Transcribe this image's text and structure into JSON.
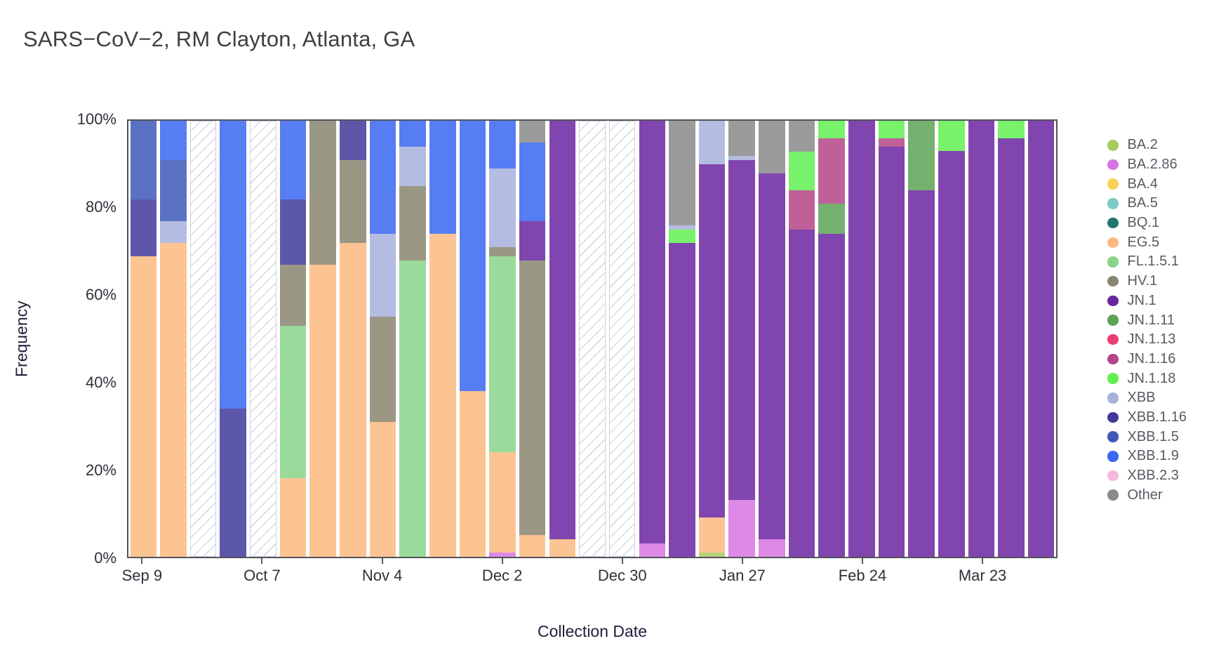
{
  "title": "SARS−CoV−2, RM Clayton, Atlanta, GA",
  "chart_data": {
    "type": "stacked_bar",
    "title": "SARS−CoV−2, RM Clayton, Atlanta, GA",
    "xlabel": "Collection Date",
    "ylabel": "Frequency",
    "grid": false,
    "legend_position": "right",
    "ylim": [
      0,
      100
    ],
    "y_ticks": [
      "0%",
      "20%",
      "40%",
      "60%",
      "80%",
      "100%"
    ],
    "x_tick_labels": [
      {
        "bar_index": 0,
        "label": "Sep 9"
      },
      {
        "bar_index": 4,
        "label": "Oct 7"
      },
      {
        "bar_index": 8,
        "label": "Nov 4"
      },
      {
        "bar_index": 12,
        "label": "Dec 2"
      },
      {
        "bar_index": 16,
        "label": "Dec 30"
      },
      {
        "bar_index": 20,
        "label": "Jan 27"
      },
      {
        "bar_index": 24,
        "label": "Feb 24"
      },
      {
        "bar_index": 28,
        "label": "Mar 23"
      }
    ],
    "legend": [
      {
        "label": "BA.2",
        "color": "#a9c961"
      },
      {
        "label": "BA.2.86",
        "color": "#d873e3"
      },
      {
        "label": "BA.4",
        "color": "#fbd058"
      },
      {
        "label": "BA.5",
        "color": "#7accc4"
      },
      {
        "label": "BQ.1",
        "color": "#20756c"
      },
      {
        "label": "EG.5",
        "color": "#fcba80"
      },
      {
        "label": "FL.1.5.1",
        "color": "#88d488"
      },
      {
        "label": "HV.1",
        "color": "#8a8570"
      },
      {
        "label": "JN.1",
        "color": "#6a24a0"
      },
      {
        "label": "JN.1.11",
        "color": "#5da355"
      },
      {
        "label": "JN.1.13",
        "color": "#ea3d70"
      },
      {
        "label": "JN.1.16",
        "color": "#b54487"
      },
      {
        "label": "JN.1.18",
        "color": "#5ff050"
      },
      {
        "label": "XBB",
        "color": "#a8b0dc"
      },
      {
        "label": "XBB.1.16",
        "color": "#413a9b"
      },
      {
        "label": "XBB.1.5",
        "color": "#3e58b8"
      },
      {
        "label": "XBB.1.9",
        "color": "#3a66f2"
      },
      {
        "label": "XBB.2.3",
        "color": "#f5b8dd"
      },
      {
        "label": "Other",
        "color": "#8a8a8a"
      }
    ],
    "bars": [
      {
        "segments": [
          [
            "EG.5",
            69
          ],
          [
            "XBB.1.16",
            13
          ],
          [
            "XBB.1.5",
            18
          ]
        ]
      },
      {
        "segments": [
          [
            "EG.5",
            72
          ],
          [
            "XBB",
            5
          ],
          [
            "XBB.1.5",
            14
          ],
          [
            "XBB.1.9",
            9
          ]
        ]
      },
      {
        "no_data": true
      },
      {
        "segments": [
          [
            "XBB.1.16",
            34
          ],
          [
            "XBB.1.9",
            66
          ]
        ]
      },
      {
        "no_data": true
      },
      {
        "segments": [
          [
            "EG.5",
            18
          ],
          [
            "FL.1.5.1",
            35
          ],
          [
            "HV.1",
            14
          ],
          [
            "XBB.1.16",
            15
          ],
          [
            "XBB.1.9",
            18
          ]
        ]
      },
      {
        "segments": [
          [
            "EG.5",
            67
          ],
          [
            "HV.1",
            33
          ]
        ]
      },
      {
        "segments": [
          [
            "EG.5",
            72
          ],
          [
            "HV.1",
            19
          ],
          [
            "XBB.1.16",
            9
          ]
        ]
      },
      {
        "segments": [
          [
            "EG.5",
            31
          ],
          [
            "HV.1",
            24
          ],
          [
            "XBB",
            19
          ],
          [
            "XBB.1.9",
            26
          ]
        ]
      },
      {
        "segments": [
          [
            "FL.1.5.1",
            68
          ],
          [
            "HV.1",
            17
          ],
          [
            "XBB",
            9
          ],
          [
            "XBB.1.9",
            6
          ]
        ]
      },
      {
        "segments": [
          [
            "EG.5",
            74
          ],
          [
            "XBB.1.9",
            26
          ]
        ]
      },
      {
        "segments": [
          [
            "EG.5",
            38
          ],
          [
            "XBB.1.9",
            62
          ]
        ]
      },
      {
        "segments": [
          [
            "BA.2.86",
            1
          ],
          [
            "EG.5",
            23
          ],
          [
            "FL.1.5.1",
            45
          ],
          [
            "HV.1",
            2
          ],
          [
            "XBB",
            18
          ],
          [
            "XBB.1.9",
            11
          ]
        ]
      },
      {
        "segments": [
          [
            "EG.5",
            5
          ],
          [
            "HV.1",
            63
          ],
          [
            "JN.1",
            9
          ],
          [
            "XBB.1.9",
            18
          ],
          [
            "Other",
            5
          ]
        ]
      },
      {
        "segments": [
          [
            "EG.5",
            4
          ],
          [
            "JN.1",
            96
          ]
        ]
      },
      {
        "no_data": true
      },
      {
        "no_data": true
      },
      {
        "segments": [
          [
            "BA.2.86",
            3
          ],
          [
            "JN.1",
            97
          ]
        ]
      },
      {
        "segments": [
          [
            "JN.1",
            72
          ],
          [
            "JN.1.18",
            3
          ],
          [
            "XBB",
            1
          ],
          [
            "Other",
            24
          ]
        ]
      },
      {
        "segments": [
          [
            "BA.2",
            1
          ],
          [
            "EG.5",
            8
          ],
          [
            "JN.1",
            81
          ],
          [
            "XBB",
            10
          ]
        ]
      },
      {
        "segments": [
          [
            "BA.2.86",
            13
          ],
          [
            "JN.1",
            78
          ],
          [
            "XBB",
            1
          ],
          [
            "Other",
            8
          ]
        ]
      },
      {
        "segments": [
          [
            "BA.2.86",
            4
          ],
          [
            "JN.1",
            84
          ],
          [
            "Other",
            12
          ]
        ]
      },
      {
        "segments": [
          [
            "JN.1",
            75
          ],
          [
            "JN.1.16",
            9
          ],
          [
            "JN.1.18",
            9
          ],
          [
            "Other",
            7
          ]
        ]
      },
      {
        "segments": [
          [
            "JN.1",
            74
          ],
          [
            "JN.1.11",
            7
          ],
          [
            "JN.1.16",
            15
          ],
          [
            "JN.1.18",
            4
          ]
        ]
      },
      {
        "segments": [
          [
            "JN.1",
            100
          ]
        ]
      },
      {
        "segments": [
          [
            "JN.1",
            94
          ],
          [
            "JN.1.16",
            2
          ],
          [
            "JN.1.18",
            4
          ]
        ]
      },
      {
        "segments": [
          [
            "JN.1",
            84
          ],
          [
            "JN.1.11",
            16
          ]
        ]
      },
      {
        "segments": [
          [
            "JN.1",
            93
          ],
          [
            "JN.1.18",
            7
          ]
        ]
      },
      {
        "segments": [
          [
            "JN.1",
            100
          ]
        ]
      },
      {
        "segments": [
          [
            "JN.1",
            96
          ],
          [
            "JN.1.18",
            4
          ]
        ]
      },
      {
        "segments": [
          [
            "JN.1",
            100
          ]
        ]
      }
    ]
  }
}
